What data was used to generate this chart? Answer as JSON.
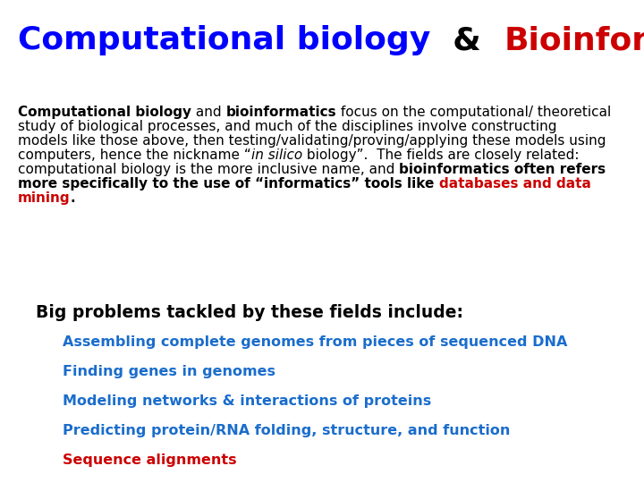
{
  "background_color": "#ffffff",
  "blue_color": "#0000ff",
  "red_color": "#cc0000",
  "black_color": "#000000",
  "bullet_blue": "#1a6dcc",
  "title_fontsize": 26,
  "body_fontsize": 11,
  "subtitle_fontsize": 13.5,
  "bullet_fontsize": 11.5,
  "bullets": [
    "Assembling complete genomes from pieces of sequenced DNA",
    "Finding genes in genomes",
    "Modeling networks & interactions of proteins",
    "Predicting protein/RNA folding, structure, and function",
    "Sequence alignments"
  ],
  "bullet_colors": [
    "#1a6dcc",
    "#1a6dcc",
    "#1a6dcc",
    "#1a6dcc",
    "#cc0000"
  ]
}
